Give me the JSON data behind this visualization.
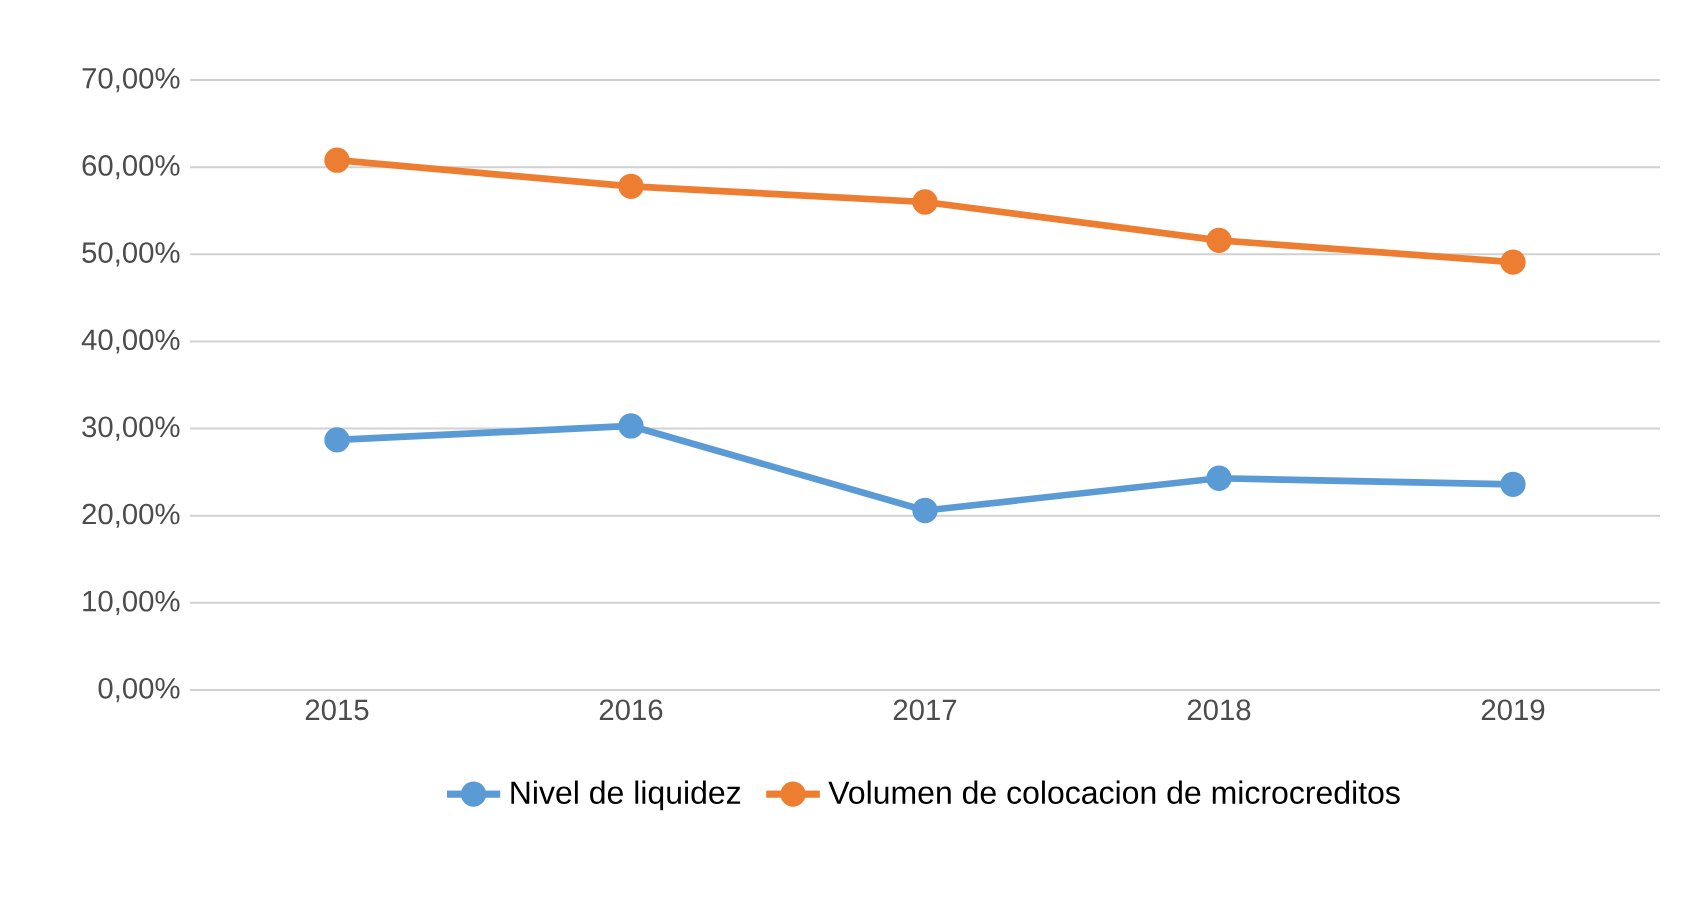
{
  "chart_data": {
    "type": "line",
    "categories": [
      "2015",
      "2016",
      "2017",
      "2018",
      "2019"
    ],
    "series": [
      {
        "name": "Nivel de liquidez",
        "color": "#5b9bd5",
        "values": [
          28.7,
          30.3,
          20.6,
          24.3,
          23.6
        ]
      },
      {
        "name": "Volumen de colocacion de microcreditos",
        "color": "#ed7d31",
        "values": [
          60.8,
          57.8,
          56.0,
          51.6,
          49.1
        ]
      }
    ],
    "ylim": [
      0,
      70
    ],
    "yticks": [
      {
        "value": 0,
        "label": "0,00%"
      },
      {
        "value": 10,
        "label": "10,00%"
      },
      {
        "value": 20,
        "label": "20,00%"
      },
      {
        "value": 30,
        "label": "30,00%"
      },
      {
        "value": 40,
        "label": "40,00%"
      },
      {
        "value": 50,
        "label": "50,00%"
      },
      {
        "value": 60,
        "label": "60,00%"
      },
      {
        "value": 70,
        "label": "70,00%"
      }
    ],
    "grid": "y",
    "legend": "bottom",
    "marker": "circle",
    "line_style": "solid"
  }
}
